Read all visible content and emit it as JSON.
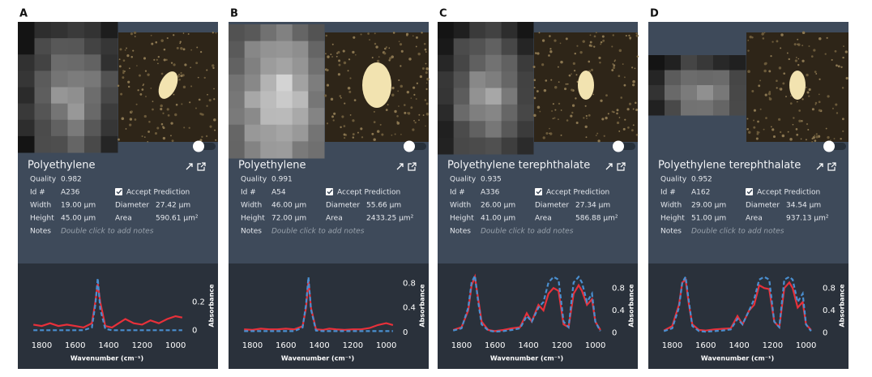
{
  "panels": [
    {
      "label": "A",
      "title": "Polyethylene",
      "rows": [
        [
          "Quality",
          "0.982"
        ],
        [
          "Id #",
          "A236"
        ],
        [
          "Width",
          "19.00 µm"
        ],
        [
          "Height",
          "45.00 µm"
        ],
        [
          "Notes",
          "Double click to add notes"
        ]
      ],
      "accept": "Accept Prediction",
      "right_rows": [
        [
          "Diameter",
          "27.42 µm"
        ],
        [
          "Area",
          "590.61 µm²"
        ]
      ]
    },
    {
      "label": "B",
      "title": "Polyethylene",
      "rows": [
        [
          "Quality",
          "0.991"
        ],
        [
          "Id #",
          "A54"
        ],
        [
          "Width",
          "46.00 µm"
        ],
        [
          "Height",
          "72.00 µm"
        ],
        [
          "Notes",
          "Double click to add notes"
        ]
      ],
      "accept": "Accept Prediction",
      "right_rows": [
        [
          "Diameter",
          "55.66 µm"
        ],
        [
          "Area",
          "2433.25 µm²"
        ]
      ]
    },
    {
      "label": "C",
      "title": "Polyethylene terephthalate",
      "rows": [
        [
          "Quality",
          "0.935"
        ],
        [
          "Id #",
          "A336"
        ],
        [
          "Width",
          "26.00 µm"
        ],
        [
          "Height",
          "41.00 µm"
        ],
        [
          "Notes",
          "Double click to add notes"
        ]
      ],
      "accept": "Accept Prediction",
      "right_rows": [
        [
          "Diameter",
          "27.34 µm"
        ],
        [
          "Area",
          "586.88 µm²"
        ]
      ]
    },
    {
      "label": "D",
      "title": "Polyethylene terephthalate",
      "rows": [
        [
          "Quality",
          "0.952"
        ],
        [
          "Id #",
          "A162"
        ],
        [
          "Width",
          "29.00 µm"
        ],
        [
          "Height",
          "51.00 µm"
        ],
        [
          "Notes",
          "Double click to add notes"
        ]
      ],
      "accept": "Accept Prediction",
      "right_rows": [
        [
          "Diameter",
          "34.54 µm"
        ],
        [
          "Area",
          "937.13 µm²"
        ]
      ]
    }
  ],
  "chart_data": [
    {
      "type": "line",
      "xlabel": "Wavenumber (cm⁻¹)",
      "ylabel": "Absorbance",
      "x": [
        1850,
        1800,
        1750,
        1700,
        1650,
        1600,
        1550,
        1500,
        1480,
        1465,
        1450,
        1420,
        1380,
        1340,
        1300,
        1250,
        1200,
        1150,
        1100,
        1050,
        1000,
        960
      ],
      "xlim": [
        1880,
        940
      ],
      "xticks": [
        1800,
        1600,
        1400,
        1200,
        1000
      ],
      "ylim": [
        -0.05,
        0.4
      ],
      "yticks": [
        0,
        0.2
      ],
      "series": [
        {
          "color": "#e8303a",
          "style": "solid",
          "values": [
            0.04,
            0.03,
            0.05,
            0.03,
            0.04,
            0.03,
            0.02,
            0.05,
            0.2,
            0.33,
            0.2,
            0.03,
            0.02,
            0.05,
            0.08,
            0.05,
            0.04,
            0.07,
            0.05,
            0.08,
            0.1,
            0.09
          ]
        },
        {
          "color": "#4a8fd0",
          "style": "dashed",
          "values": [
            0,
            0,
            0,
            0,
            0,
            0,
            0,
            0.02,
            0.18,
            0.37,
            0.15,
            0.01,
            0,
            0,
            0,
            0,
            0,
            0,
            0,
            0,
            0,
            0
          ]
        }
      ]
    },
    {
      "type": "line",
      "xlabel": "Wavenumber (cm⁻¹)",
      "ylabel": "Absorbance",
      "x": [
        1850,
        1800,
        1750,
        1700,
        1650,
        1600,
        1550,
        1500,
        1480,
        1465,
        1450,
        1420,
        1380,
        1340,
        1300,
        1250,
        1200,
        1150,
        1100,
        1050,
        1000,
        960
      ],
      "xlim": [
        1880,
        940
      ],
      "xticks": [
        1800,
        1600,
        1400,
        1200,
        1000
      ],
      "ylim": [
        -0.08,
        0.95
      ],
      "yticks": [
        0,
        0.4,
        0.8
      ],
      "series": [
        {
          "color": "#e8303a",
          "style": "solid",
          "values": [
            0.05,
            0.04,
            0.06,
            0.05,
            0.05,
            0.06,
            0.05,
            0.1,
            0.4,
            0.85,
            0.4,
            0.05,
            0.04,
            0.06,
            0.05,
            0.04,
            0.05,
            0.05,
            0.07,
            0.12,
            0.15,
            0.12
          ]
        },
        {
          "color": "#4a8fd0",
          "style": "dashed",
          "values": [
            0.02,
            0.02,
            0.02,
            0.02,
            0.02,
            0.02,
            0.02,
            0.08,
            0.45,
            0.9,
            0.38,
            0.03,
            0.02,
            0.02,
            0.02,
            0.02,
            0.02,
            0.02,
            0.02,
            0.02,
            0.02,
            0.02
          ]
        }
      ]
    },
    {
      "type": "line",
      "xlabel": "Wavenumber (cm⁻¹)",
      "ylabel": "Absorbance",
      "x": [
        1850,
        1800,
        1760,
        1740,
        1720,
        1700,
        1680,
        1640,
        1600,
        1550,
        1500,
        1450,
        1410,
        1380,
        1340,
        1310,
        1280,
        1250,
        1220,
        1190,
        1160,
        1130,
        1100,
        1080,
        1050,
        1020,
        1000,
        970
      ],
      "xlim": [
        1880,
        940
      ],
      "xticks": [
        1800,
        1600,
        1400,
        1200,
        1000
      ],
      "ylim": [
        -0.08,
        1.05
      ],
      "yticks": [
        0,
        0.4,
        0.8
      ],
      "series": [
        {
          "color": "#e8303a",
          "style": "solid",
          "values": [
            0.05,
            0.1,
            0.4,
            0.85,
            1.0,
            0.6,
            0.2,
            0.05,
            0.03,
            0.05,
            0.08,
            0.1,
            0.35,
            0.2,
            0.5,
            0.4,
            0.7,
            0.8,
            0.75,
            0.15,
            0.1,
            0.7,
            0.85,
            0.75,
            0.5,
            0.6,
            0.2,
            0.05
          ]
        },
        {
          "color": "#4a8fd0",
          "style": "dashed",
          "values": [
            0.04,
            0.08,
            0.45,
            0.9,
            1.02,
            0.55,
            0.15,
            0.04,
            0.02,
            0.03,
            0.05,
            0.08,
            0.3,
            0.2,
            0.45,
            0.55,
            0.9,
            1.0,
            0.95,
            0.2,
            0.1,
            0.9,
            1.0,
            0.9,
            0.55,
            0.7,
            0.2,
            0.03
          ]
        }
      ]
    },
    {
      "type": "line",
      "xlabel": "Wavenumber (cm⁻¹)",
      "ylabel": "Absorbance",
      "x": [
        1850,
        1800,
        1760,
        1740,
        1720,
        1700,
        1680,
        1640,
        1600,
        1550,
        1500,
        1450,
        1410,
        1380,
        1340,
        1310,
        1280,
        1250,
        1220,
        1190,
        1160,
        1130,
        1100,
        1080,
        1050,
        1020,
        1000,
        970
      ],
      "xlim": [
        1880,
        940
      ],
      "xticks": [
        1800,
        1600,
        1400,
        1200,
        1000
      ],
      "ylim": [
        -0.08,
        1.05
      ],
      "yticks": [
        0,
        0.4,
        0.8
      ],
      "series": [
        {
          "color": "#e8303a",
          "style": "solid",
          "values": [
            0.04,
            0.12,
            0.5,
            0.9,
            0.95,
            0.5,
            0.15,
            0.05,
            0.04,
            0.06,
            0.07,
            0.08,
            0.3,
            0.15,
            0.4,
            0.5,
            0.85,
            0.8,
            0.78,
            0.2,
            0.1,
            0.8,
            0.9,
            0.8,
            0.45,
            0.55,
            0.15,
            0.05
          ]
        },
        {
          "color": "#4a8fd0",
          "style": "dashed",
          "values": [
            0.03,
            0.08,
            0.45,
            0.9,
            1.0,
            0.55,
            0.12,
            0.03,
            0.02,
            0.03,
            0.04,
            0.06,
            0.25,
            0.15,
            0.4,
            0.6,
            0.95,
            1.0,
            0.95,
            0.2,
            0.1,
            0.95,
            1.0,
            0.95,
            0.55,
            0.7,
            0.15,
            0.03
          ]
        }
      ]
    }
  ]
}
